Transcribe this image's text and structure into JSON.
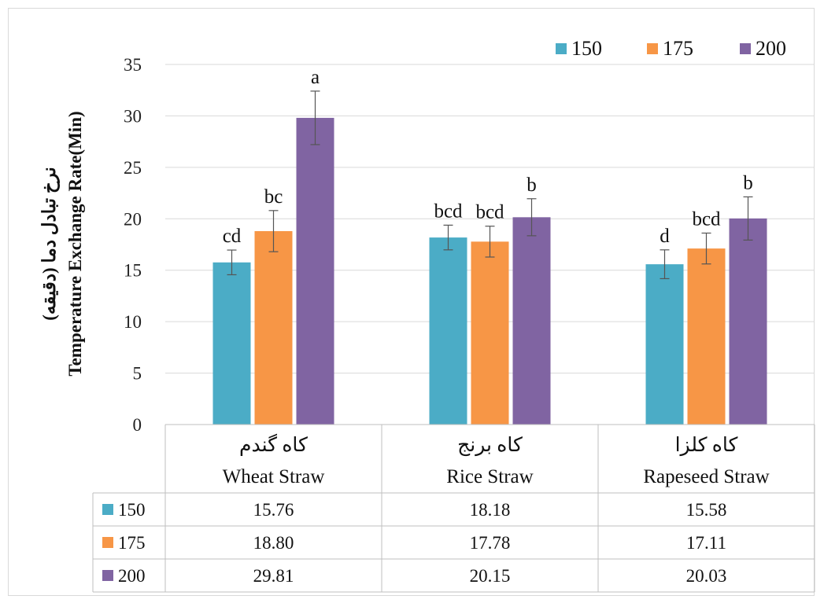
{
  "chart_data": {
    "type": "bar",
    "ylabel_fa": "نرخ تبادل دما (دقیقه)",
    "ylabel_en": "Temperature Exchange Rate(Min)",
    "ylim": [
      0,
      35
    ],
    "yticks": [
      "0",
      "5",
      "10",
      "15",
      "20",
      "25",
      "30",
      "35"
    ],
    "ytick_values": [
      0,
      5,
      10,
      15,
      20,
      25,
      30,
      35
    ],
    "grid": true,
    "legend_position": "top-right",
    "categories": [
      {
        "fa": "کاه گندم",
        "en": "Wheat Straw"
      },
      {
        "fa": "کاه برنج",
        "en": "Rice Straw"
      },
      {
        "fa": "کاه کلزا",
        "en": "Rapeseed Straw"
      }
    ],
    "series": [
      {
        "name": "150",
        "color": "#4bacc6",
        "values": [
          15.76,
          18.18,
          15.58
        ],
        "labels": [
          "15.76",
          "18.18",
          "15.58"
        ],
        "errors": [
          1.2,
          1.2,
          1.4
        ],
        "letters": [
          "cd",
          "bcd",
          "d"
        ]
      },
      {
        "name": "175",
        "color": "#f79646",
        "values": [
          18.8,
          17.78,
          17.11
        ],
        "labels": [
          "18.80",
          "17.78",
          "17.11"
        ],
        "errors": [
          2.0,
          1.5,
          1.5
        ],
        "letters": [
          "bc",
          "bcd",
          "bcd"
        ]
      },
      {
        "name": "200",
        "color": "#8064a2",
        "values": [
          29.81,
          20.15,
          20.03
        ],
        "labels": [
          "29.81",
          "20.15",
          "20.03"
        ],
        "errors": [
          2.6,
          1.8,
          2.1
        ],
        "letters": [
          "a",
          "b",
          "b"
        ]
      }
    ]
  }
}
